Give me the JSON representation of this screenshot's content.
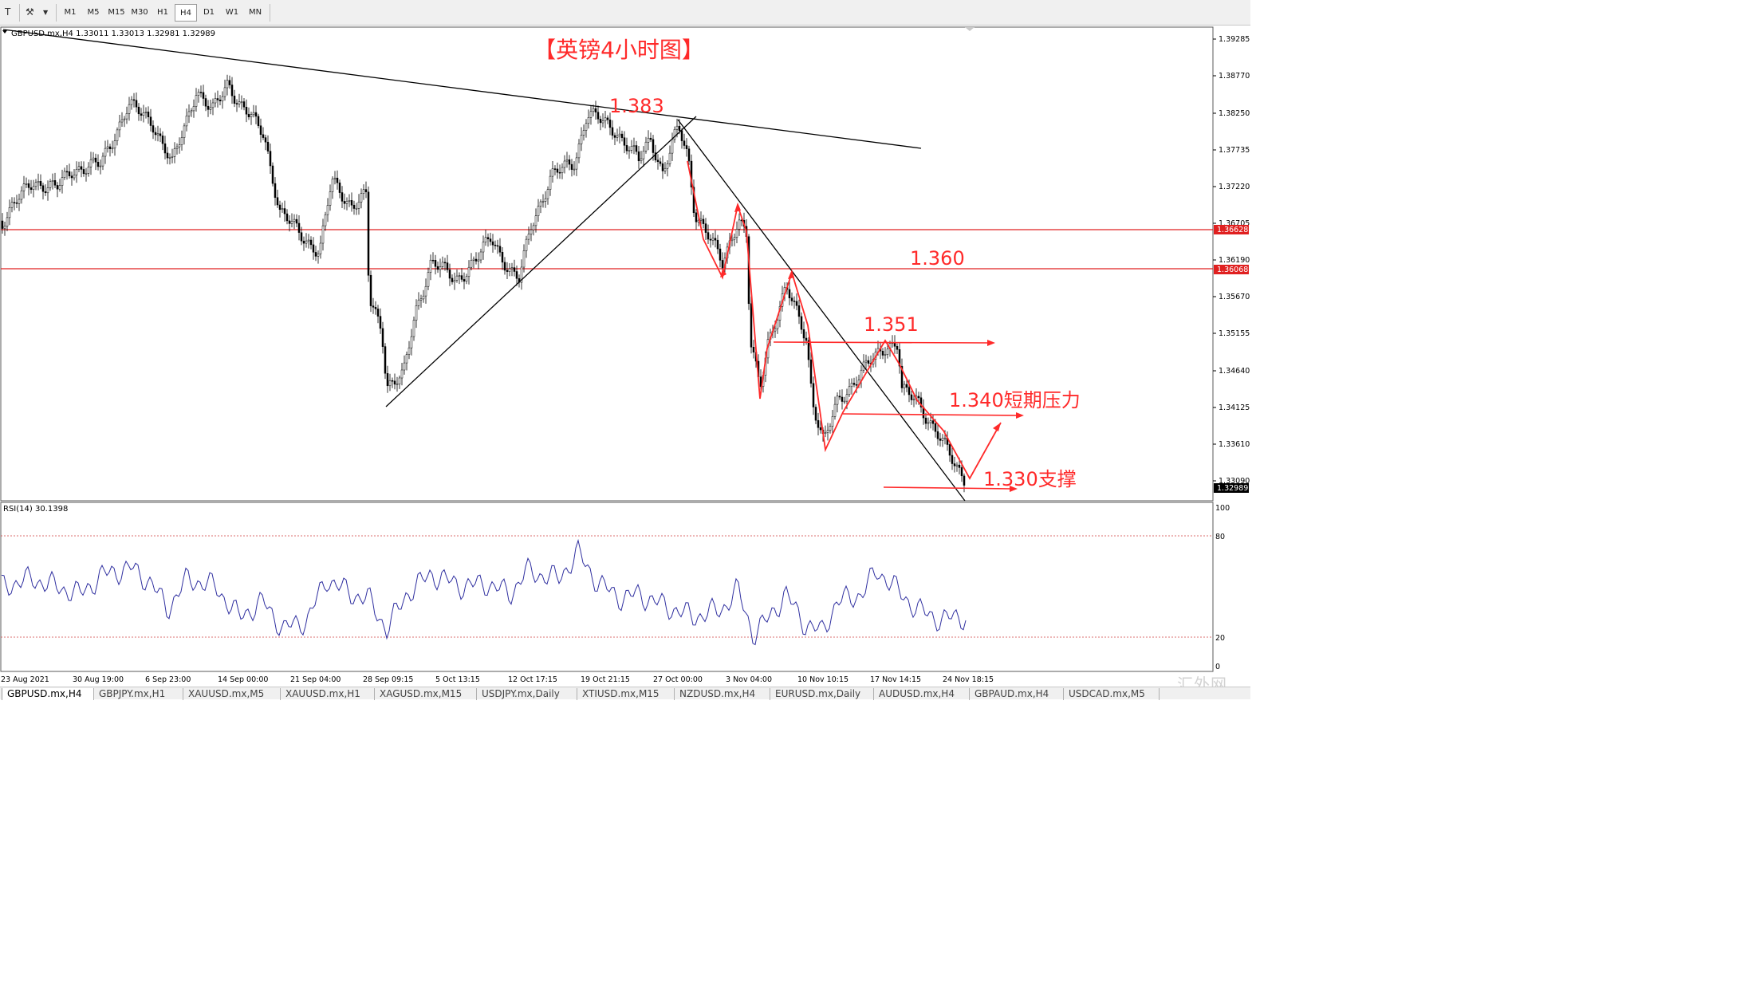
{
  "toolbar": {
    "timeframes": [
      "M1",
      "M5",
      "M15",
      "M30",
      "H1",
      "H4",
      "D1",
      "W1",
      "MN"
    ],
    "active_timeframe": "H4"
  },
  "main_chart": {
    "header": "GBPUSD.mx,H4  1.33011 1.33013 1.32981 1.32989",
    "title": "【英镑4小时图】",
    "price_scale": [
      "1.39285",
      "1.38770",
      "1.38250",
      "1.37735",
      "1.37220",
      "1.36705",
      "1.36190",
      "1.35670",
      "1.35155",
      "1.34640",
      "1.34125",
      "1.33610",
      "1.33090"
    ],
    "line_label_1": "1.36628",
    "line_label_2": "1.36068",
    "current_price": "1.32989",
    "annotations": {
      "a1": "1.383",
      "a2": "1.360",
      "a3": "1.351",
      "a4": "1.340短期压力",
      "a5": "1.330支撑"
    },
    "colors": {
      "annotation": "#ff2a2a",
      "line": "#e02020",
      "candle": "#000000",
      "trend": "#000000"
    }
  },
  "rsi": {
    "header": "RSI(14) 30.1398",
    "scale": [
      "100",
      "80",
      "20",
      "0"
    ],
    "color": "#3030a0",
    "level_color": "#d04040"
  },
  "time_axis": [
    "23 Aug 2021",
    "30 Aug 19:00",
    "6 Sep 23:00",
    "14 Sep 00:00",
    "21 Sep 04:00",
    "28 Sep 09:15",
    "5 Oct 13:15",
    "12 Oct 17:15",
    "19 Oct 21:15",
    "27 Oct 00:00",
    "3 Nov 04:00",
    "10 Nov 10:15",
    "17 Nov 14:15",
    "24 Nov 18:15"
  ],
  "tabs": [
    "GBPUSD.mx,H4",
    "GBPJPY.mx,H1",
    "XAUUSD.mx,M5",
    "XAUUSD.mx,H1",
    "XAGUSD.mx,M15",
    "USDJPY.mx,Daily",
    "XTIUSD.mx,M15",
    "NZDUSD.mx,H4",
    "EURUSD.mx,Daily",
    "AUDUSD.mx,H4",
    "GBPAUD.mx,H4",
    "USDCAD.mx,M5"
  ],
  "active_tab": "GBPUSD.mx,H4",
  "watermark": "汇外网"
}
